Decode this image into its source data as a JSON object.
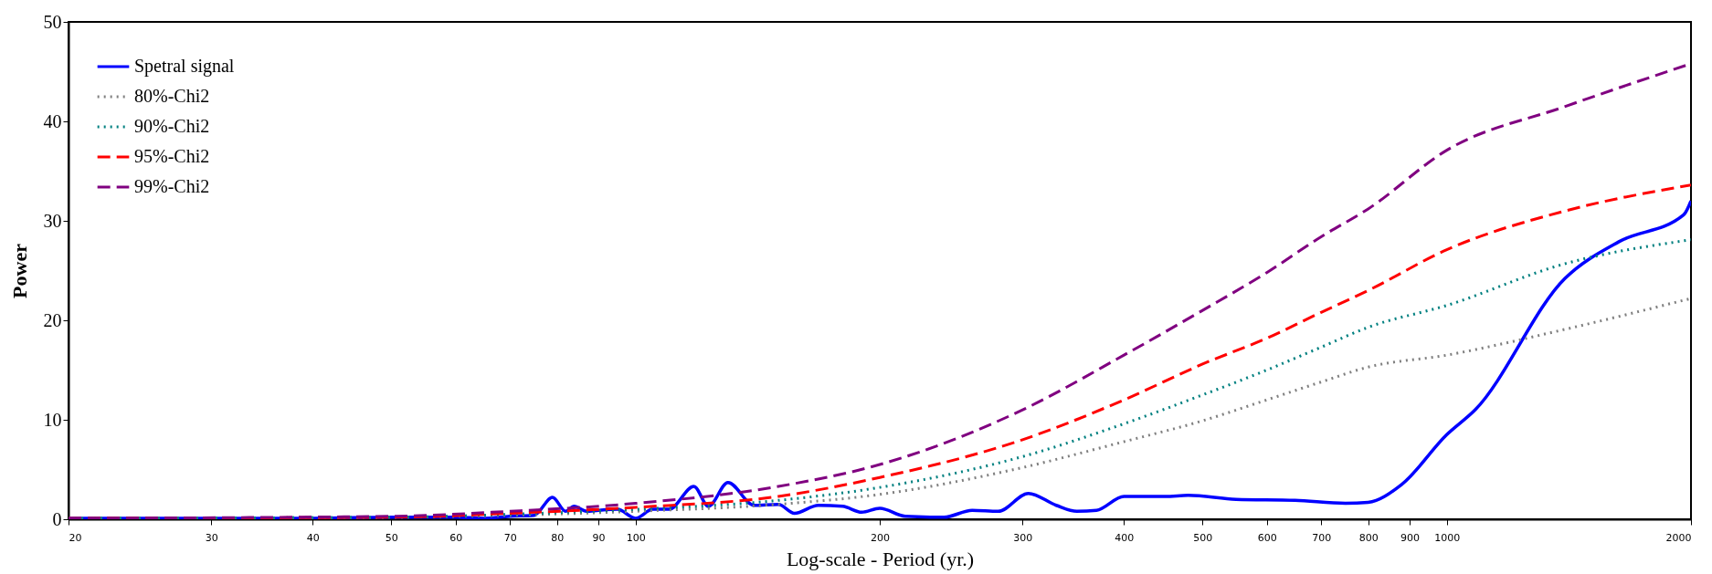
{
  "chart_data": {
    "type": "line",
    "xlabel": "Log-scale - Period (yr.)",
    "ylabel": "Power",
    "log": "x",
    "grid": false,
    "legend": "top left",
    "xlim": [
      20,
      2000
    ],
    "ylim": [
      0,
      50
    ],
    "xticks": [
      20,
      30,
      40,
      50,
      60,
      70,
      80,
      90,
      100,
      200,
      300,
      400,
      500,
      600,
      700,
      800,
      900,
      1000,
      2000
    ],
    "yticks": [
      0,
      10,
      20,
      30,
      40,
      50
    ],
    "series": [
      {
        "name": "Spetral signal",
        "color": "#0000ff",
        "line_style": "solid",
        "x": [
          20,
          30,
          40,
          50,
          60,
          65,
          70,
          75,
          79,
          82,
          84,
          87,
          90,
          95,
          100,
          105,
          110,
          118,
          123,
          130,
          140,
          150,
          157,
          168,
          180,
          190,
          200,
          215,
          240,
          260,
          280,
          305,
          330,
          350,
          370,
          400,
          450,
          480,
          550,
          650,
          750,
          800,
          880,
          1000,
          1084,
          1398,
          1630,
          1959,
          2000
        ],
        "values": [
          0.1,
          0.1,
          0.1,
          0.2,
          0.2,
          0.1,
          0.3,
          0.4,
          2.2,
          0.8,
          1.3,
          0.8,
          0.9,
          1.0,
          0.1,
          1.0,
          1.0,
          3.3,
          1.3,
          3.7,
          1.4,
          1.5,
          0.6,
          1.4,
          1.3,
          0.7,
          1.1,
          0.3,
          0.2,
          0.9,
          0.8,
          2.6,
          1.4,
          0.8,
          0.9,
          2.3,
          2.3,
          2.4,
          2.0,
          1.9,
          1.6,
          1.7,
          3.5,
          8.5,
          11.0,
          24.2,
          27.9,
          30.6,
          32.0
        ]
      },
      {
        "name": "80%-Chi2",
        "color": "#808080",
        "line_style": "dotted",
        "x": [
          20,
          50,
          70,
          100,
          150,
          200,
          300,
          400,
          500,
          600,
          700,
          800,
          1000,
          1400,
          2000
        ],
        "values": [
          0.1,
          0.2,
          0.4,
          0.8,
          1.5,
          2.5,
          5.2,
          7.8,
          9.9,
          12,
          13.8,
          15.3,
          16.5,
          19.1,
          22.2
        ]
      },
      {
        "name": "90%-Chi2",
        "color": "#008080",
        "line_style": "dotted",
        "x": [
          20,
          50,
          70,
          100,
          150,
          200,
          300,
          400,
          500,
          600,
          700,
          800,
          1000,
          1400,
          2000
        ],
        "values": [
          0.1,
          0.2,
          0.5,
          1.0,
          1.9,
          3.2,
          6.3,
          9.6,
          12.5,
          15,
          17.3,
          19.3,
          21.5,
          25.7,
          28.1
        ]
      },
      {
        "name": "95%-Chi2",
        "color": "#ff0000",
        "line_style": "dashed",
        "x": [
          20,
          50,
          70,
          100,
          150,
          200,
          300,
          400,
          500,
          600,
          700,
          800,
          1000,
          1400,
          2000
        ],
        "values": [
          0.1,
          0.2,
          0.6,
          1.2,
          2.3,
          4.2,
          8,
          12,
          15.6,
          18.2,
          20.8,
          23,
          27.1,
          31,
          33.6
        ]
      },
      {
        "name": "99%-Chi2",
        "color": "#800080",
        "line_style": "dashed",
        "x": [
          20,
          50,
          70,
          100,
          150,
          200,
          300,
          400,
          500,
          600,
          700,
          800,
          1000,
          1400,
          2000
        ],
        "values": [
          0.1,
          0.3,
          0.8,
          1.6,
          3.3,
          5.5,
          11,
          16.5,
          21,
          24.8,
          28.4,
          31.2,
          37.1,
          41.5,
          45.8
        ]
      }
    ]
  }
}
